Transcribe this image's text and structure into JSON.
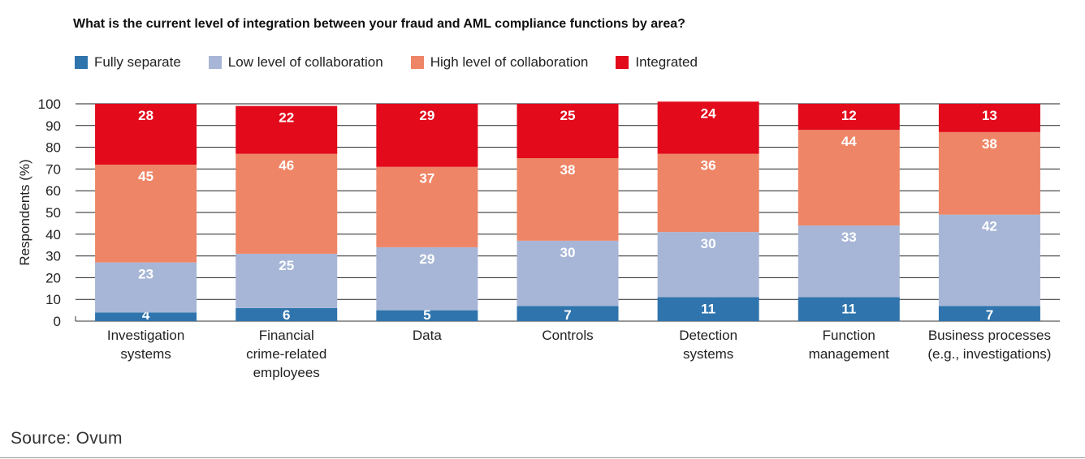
{
  "chart_data": {
    "type": "bar",
    "stacked": true,
    "title": "What is the current level of integration between your fraud and AML compliance functions by area?",
    "xlabel": "",
    "ylabel": "Respondents (%)",
    "ylim": [
      0,
      100
    ],
    "yticks": [
      0,
      10,
      20,
      30,
      40,
      50,
      60,
      70,
      80,
      90,
      100
    ],
    "grid": true,
    "legend_position": "top-left",
    "categories": [
      [
        "Investigation",
        "systems"
      ],
      [
        "Financial",
        "crime-related",
        "employees"
      ],
      [
        "Data"
      ],
      [
        "Controls"
      ],
      [
        "Detection",
        "systems"
      ],
      [
        "Function",
        "management"
      ],
      [
        "Business processes",
        "(e.g., investigations)"
      ]
    ],
    "series": [
      {
        "name": "Fully separate",
        "color": "#2f74ad",
        "values": [
          4,
          6,
          5,
          7,
          11,
          11,
          7
        ]
      },
      {
        "name": "Low level of collaboration",
        "color": "#a7b6d6",
        "values": [
          23,
          25,
          29,
          30,
          30,
          33,
          42
        ]
      },
      {
        "name": "High level of collaboration",
        "color": "#ee8566",
        "values": [
          45,
          46,
          37,
          38,
          36,
          44,
          38
        ]
      },
      {
        "name": "Integrated",
        "color": "#e20a1b",
        "values": [
          28,
          22,
          29,
          25,
          24,
          12,
          13
        ]
      }
    ]
  },
  "source": "Source: Ovum"
}
